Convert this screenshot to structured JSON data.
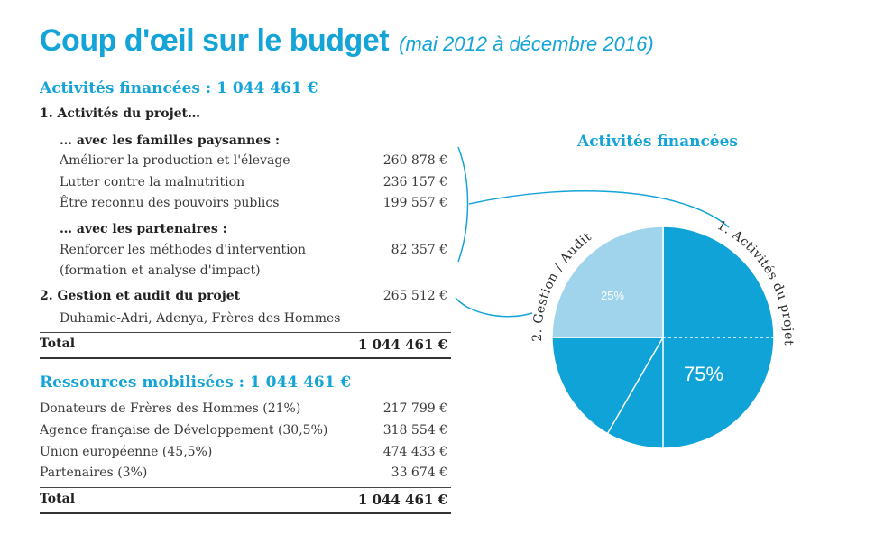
{
  "header": {
    "title": "Coup d'œil sur le budget",
    "subtitle": "(mai 2012 à décembre 2016)"
  },
  "activities": {
    "heading": "Activités financées : 1 044 461 €",
    "group1": "1. Activités du projet…",
    "sub1": "… avec les familles paysannes :",
    "items": [
      {
        "label": "Améliorer la production et l'élevage",
        "amount": "260 878 €"
      },
      {
        "label": "Lutter contre la malnutrition",
        "amount": "236 157 €"
      },
      {
        "label": "Être reconnu des pouvoirs publics",
        "amount": "199 557 €"
      }
    ],
    "sub2": "… avec les partenaires :",
    "partner_label1": "Renforcer les méthodes d'intervention",
    "partner_label2": "(formation et analyse d'impact)",
    "partner_amount": "82 357 €",
    "group2": "2. Gestion et audit du projet",
    "group2_amount": "265 512 €",
    "group2_note": "Duhamic-Adri, Adenya, Frères des Hommes",
    "total_label": "Total",
    "total_amount": "1 044 461 €"
  },
  "resources": {
    "heading": "Ressources mobilisées : 1 044 461 €",
    "items": [
      {
        "label": "Donateurs de Frères des Hommes (21%)",
        "amount": "217 799 €"
      },
      {
        "label": "Agence française de Développement (30,5%)",
        "amount": "318 554 €"
      },
      {
        "label": "Union européenne (45,5%)",
        "amount": "474 433 €"
      },
      {
        "label": "Partenaires (3%)",
        "amount": "33 674 €"
      }
    ],
    "total_label": "Total",
    "total_amount": "1 044 461 €"
  },
  "chart_data": {
    "type": "pie",
    "title": "Activités financées",
    "slices": [
      {
        "label": "1. Activités du projet",
        "value": 75,
        "value_label": "75%",
        "color": "#0fa3d8"
      },
      {
        "label": "2. Gestion / Audit",
        "value": 25,
        "value_label": "25%",
        "color": "#9fd4ec"
      }
    ],
    "sub_segments_in_slice_1": 4
  },
  "colors": {
    "accent": "#14a4d8",
    "pie_dark": "#0fa3d8",
    "pie_light": "#9fd4ec"
  }
}
